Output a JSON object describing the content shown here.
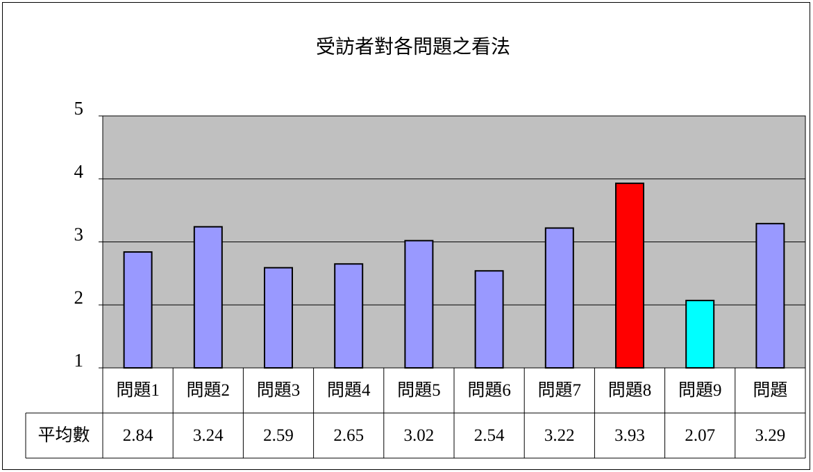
{
  "chart_data": {
    "type": "bar",
    "title": "受訪者對各問題之看法",
    "categories": [
      "問題1",
      "問題2",
      "問題3",
      "問題4",
      "問題5",
      "問題6",
      "問題7",
      "問題8",
      "問題9",
      "問題"
    ],
    "series": [
      {
        "name": "平均數",
        "values": [
          2.84,
          3.24,
          2.59,
          2.65,
          3.02,
          2.54,
          3.22,
          3.93,
          2.07,
          3.29
        ],
        "colors": [
          "#9999ff",
          "#9999ff",
          "#9999ff",
          "#9999ff",
          "#9999ff",
          "#9999ff",
          "#9999ff",
          "#ff0000",
          "#00ffff",
          "#9999ff"
        ]
      }
    ],
    "ylim": [
      1,
      5
    ],
    "yticks": [
      1,
      2,
      3,
      4,
      5
    ],
    "grid": true,
    "plot_background": "#c0c0c0",
    "data_table": true
  }
}
